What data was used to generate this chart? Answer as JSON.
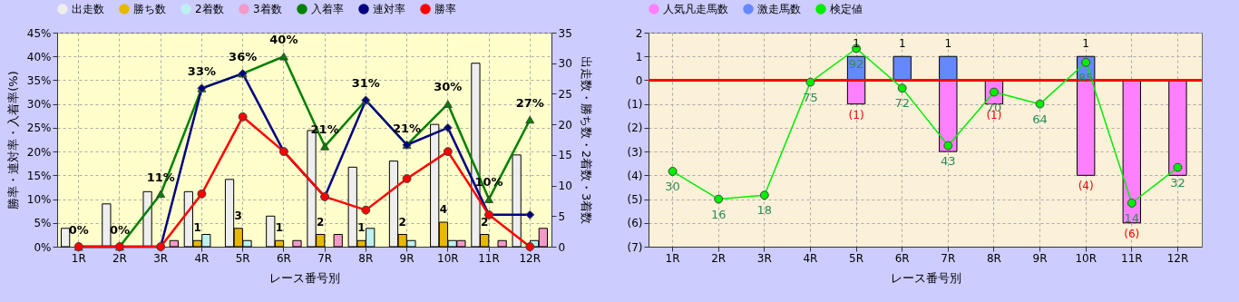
{
  "chart_data": [
    {
      "type": "bar",
      "xlabel": "レース番号別",
      "ylabel": "勝率・連対率・入着率(%)",
      "y2label": "出走数・勝ち数・2着数・3着数",
      "categories": [
        "1R",
        "2R",
        "3R",
        "4R",
        "5R",
        "6R",
        "7R",
        "8R",
        "9R",
        "10R",
        "11R",
        "12R"
      ],
      "ylim": [
        0,
        45
      ],
      "yticks": [
        {
          "value": 0,
          "label": "0%"
        },
        {
          "value": 5,
          "label": "5%"
        },
        {
          "value": 10,
          "label": "10%"
        },
        {
          "value": 15,
          "label": "15%"
        },
        {
          "value": 20,
          "label": "20%"
        },
        {
          "value": 25,
          "label": "25%"
        },
        {
          "value": 30,
          "label": "30%"
        },
        {
          "value": 35,
          "label": "35%"
        },
        {
          "value": 40,
          "label": "40%"
        },
        {
          "value": 45,
          "label": "45%"
        }
      ],
      "y2lim": [
        0,
        35
      ],
      "y2ticks": [
        0,
        5,
        10,
        15,
        20,
        25,
        30,
        35
      ],
      "grid": true,
      "legend": "top",
      "series": [
        {
          "name": "出走数",
          "axis": "y2",
          "color": "#eeeeee",
          "values": [
            3,
            7,
            9,
            9,
            11,
            5,
            19,
            13,
            14,
            20,
            30,
            15
          ]
        },
        {
          "name": "勝ち数",
          "axis": "y2",
          "color": "#e6b800",
          "values": [
            0,
            0,
            0,
            1,
            3,
            1,
            2,
            1,
            2,
            4,
            2,
            0
          ],
          "value_labels": [
            null,
            null,
            null,
            "1",
            "3",
            "1",
            "2",
            "1",
            "2",
            "4",
            "2",
            null
          ]
        },
        {
          "name": "2着数",
          "axis": "y2",
          "color": "#bff0f0",
          "values": [
            0,
            0,
            0,
            2,
            1,
            0,
            0,
            3,
            1,
            1,
            0,
            1
          ]
        },
        {
          "name": "3着数",
          "axis": "y2",
          "color": "#f39ac8",
          "values": [
            0,
            0,
            1,
            0,
            0,
            1,
            2,
            0,
            0,
            1,
            1,
            3
          ]
        },
        {
          "name": "入着率",
          "type": "line",
          "color": "#008000",
          "marker": "triangle",
          "values": [
            0,
            0,
            11.1,
            33.3,
            36.4,
            40,
            21.1,
            30.8,
            21.4,
            30,
            10,
            26.7
          ],
          "value_labels": [
            "0%",
            "0%",
            "11%",
            "33%",
            "36%",
            "40%",
            "21%",
            "31%",
            "21%",
            "30%",
            "10%",
            "27%"
          ]
        },
        {
          "name": "連対率",
          "type": "line",
          "color": "#000080",
          "marker": "diamond",
          "values": [
            0,
            0,
            0,
            33.3,
            36.4,
            20,
            10.5,
            30.8,
            21.4,
            25,
            6.7,
            6.7
          ]
        },
        {
          "name": "勝率",
          "type": "line",
          "color": "#ff0000",
          "marker": "circle",
          "values": [
            0,
            0,
            0,
            11.1,
            27.3,
            20,
            10.5,
            7.7,
            14.3,
            20,
            6.7,
            0
          ]
        }
      ]
    },
    {
      "type": "bar",
      "xlabel": "レース番号別",
      "categories": [
        "1R",
        "2R",
        "3R",
        "4R",
        "5R",
        "6R",
        "7R",
        "8R",
        "9R",
        "10R",
        "11R",
        "12R"
      ],
      "ylim": [
        -7,
        2
      ],
      "yticks": [
        2,
        1,
        0,
        {
          "value": -1,
          "label": "(1)"
        },
        {
          "value": -2,
          "label": "(2)"
        },
        {
          "value": -3,
          "label": "(3)"
        },
        {
          "value": -4,
          "label": "(4)"
        },
        {
          "value": -5,
          "label": "(5)"
        },
        {
          "value": -6,
          "label": "(6)"
        },
        {
          "value": -7,
          "label": "(7)"
        }
      ],
      "y2lim": [
        -8,
        100
      ],
      "stacked": true,
      "grid": true,
      "legend": "top",
      "ref_lines": [
        {
          "axis": "y",
          "value": 0,
          "color": "#ff0000"
        }
      ],
      "series": [
        {
          "name": "人気凡走馬数",
          "color": "#ff80ff",
          "values": [
            0,
            0,
            0,
            0,
            -1,
            0,
            -3,
            -1,
            0,
            -4,
            -6,
            -4
          ],
          "value_labels": [
            null,
            null,
            null,
            null,
            "(1)",
            null,
            null,
            "(1)",
            null,
            "(4)",
            "(6)",
            null
          ]
        },
        {
          "name": "激走馬数",
          "color": "#6688ff",
          "values": [
            0,
            0,
            0,
            0,
            1,
            1,
            1,
            0,
            0,
            1,
            0,
            0
          ],
          "value_labels": [
            null,
            null,
            null,
            null,
            "1",
            "1",
            "1",
            null,
            null,
            "1",
            null,
            null
          ]
        },
        {
          "name": "検定値",
          "type": "line",
          "axis": "y2",
          "color": "#00ee00",
          "marker": "circle",
          "values": [
            30,
            16,
            18,
            75,
            92,
            72,
            43,
            70,
            64,
            85,
            14,
            32
          ],
          "value_labels": [
            "30",
            "16",
            "18",
            "75",
            "92",
            "72",
            "43",
            "70",
            "64",
            "85",
            "14",
            "32"
          ]
        }
      ]
    }
  ]
}
